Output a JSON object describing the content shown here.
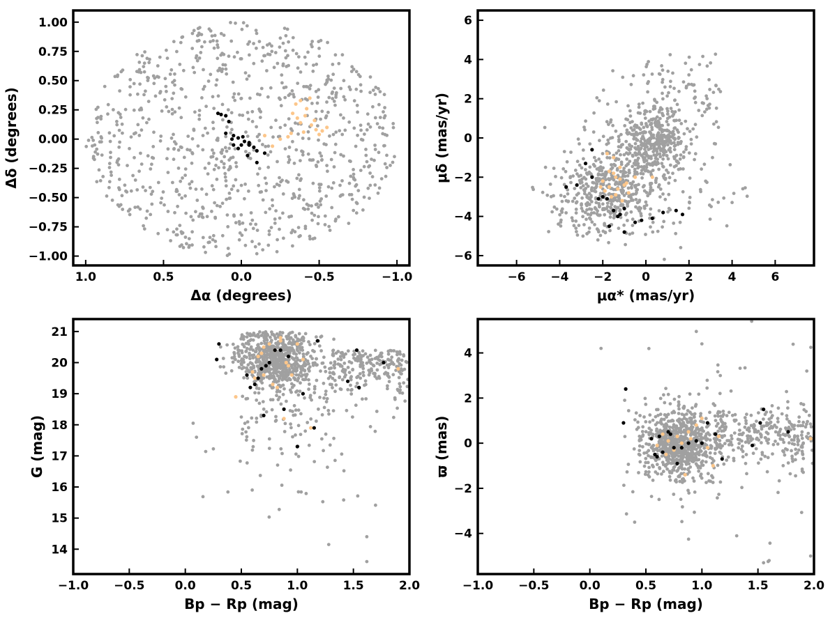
{
  "colors": {
    "field": "#a0a0a0",
    "orange": "#fcc68a",
    "black": "#000000"
  },
  "chart_data": [
    {
      "type": "scatter",
      "xlabel": "Δα (degrees)",
      "ylabel": "Δδ (degrees)",
      "xlim": [
        1.08,
        -1.08
      ],
      "ylim": [
        -1.08,
        1.1
      ],
      "xticks": [
        1.0,
        0.5,
        0.0,
        -0.5,
        -1.0
      ],
      "xtick_labels": [
        "1.0",
        "0.5",
        "0.0",
        "−0.5",
        "−1.0"
      ],
      "yticks": [
        -1.0,
        -0.75,
        -0.5,
        -0.25,
        0.0,
        0.25,
        0.5,
        0.75,
        1.0
      ],
      "ytick_labels": [
        "−1.00",
        "−0.75",
        "−0.50",
        "−0.25",
        "0.00",
        "0.25",
        "0.50",
        "0.75",
        "1.00"
      ],
      "field_description": "~900 grey stars uniformly filling a circle of radius 1 degree",
      "series_orange": {
        "x": [
          -0.35,
          -0.38,
          -0.42,
          -0.33,
          -0.36,
          -0.45,
          -0.48,
          -0.4,
          -0.5,
          -0.55,
          -0.3,
          -0.25,
          -0.2,
          -0.15,
          -0.44,
          -0.38,
          -0.32,
          -0.41,
          -0.47,
          -0.52
        ],
        "y": [
          0.3,
          0.33,
          0.26,
          0.22,
          0.18,
          0.12,
          0.08,
          0.06,
          0.04,
          0.1,
          0.02,
          0.0,
          -0.06,
          0.03,
          0.35,
          0.14,
          0.05,
          0.2,
          0.16,
          0.07
        ]
      },
      "series_black": {
        "x": [
          0.15,
          0.13,
          0.1,
          0.08,
          0.1,
          0.05,
          0.02,
          -0.02,
          0.0,
          -0.05,
          -0.08,
          -0.1,
          -0.04,
          0.02,
          0.05,
          -0.15,
          -0.1,
          -0.05,
          0.06,
          -0.01
        ],
        "y": [
          0.22,
          0.21,
          0.2,
          0.15,
          0.05,
          0.03,
          0.01,
          -0.02,
          -0.05,
          -0.05,
          -0.07,
          -0.2,
          -0.14,
          -0.08,
          -0.05,
          -0.12,
          -0.1,
          -0.03,
          0.0,
          0.02
        ]
      }
    },
    {
      "type": "scatter",
      "xlabel": "μα* (mas/yr)",
      "ylabel": "μδ (mas/yr)",
      "xlim": [
        -7.8,
        7.8
      ],
      "ylim": [
        -6.5,
        6.5
      ],
      "xticks": [
        -6,
        -4,
        -2,
        0,
        2,
        4,
        6
      ],
      "xtick_labels": [
        "−6",
        "−4",
        "−2",
        "0",
        "2",
        "4",
        "6"
      ],
      "yticks": [
        -6,
        -4,
        -2,
        0,
        2,
        4,
        6
      ],
      "ytick_labels": [
        "−6",
        "−4",
        "−2",
        "0",
        "2",
        "4",
        "6"
      ],
      "field_description": "grey stars: clump near (0,0), broad spread toward (-2,-3)",
      "series_orange": {
        "x": [
          -1.8,
          -1.5,
          -1.2,
          -2.0,
          -1.7,
          -1.4,
          -1.0,
          -0.8,
          -1.6,
          -1.3,
          -0.5,
          -1.9,
          -1.1,
          -0.9,
          -1.5,
          -1.2,
          -2.1,
          0.3,
          -1.7,
          -1.4
        ],
        "y": [
          -0.8,
          -1.0,
          -1.5,
          -2.2,
          -2.5,
          -2.0,
          -2.4,
          -2.8,
          -3.0,
          -2.6,
          -2.0,
          -2.7,
          -3.2,
          -2.3,
          -1.8,
          -2.1,
          -2.5,
          -2.0,
          -1.7,
          -2.9
        ]
      },
      "series_black": {
        "x": [
          -2.5,
          -2.8,
          -3.2,
          -3.7,
          -2.5,
          -1.8,
          -1.5,
          -1.2,
          -1.0,
          -1.3,
          -1.7,
          -0.5,
          -0.2,
          0.3,
          1.7,
          1.4,
          0.8,
          -2.0,
          -1.0,
          -2.2
        ],
        "y": [
          -0.6,
          -1.3,
          -2.4,
          -2.5,
          -2.0,
          -3.1,
          -3.7,
          -3.9,
          -3.6,
          -4.0,
          -4.5,
          -4.3,
          -4.2,
          -4.1,
          -3.9,
          -3.7,
          -3.8,
          -3.0,
          -4.8,
          -3.1
        ]
      }
    },
    {
      "type": "scatter",
      "xlabel": "Bp − Rp (mag)",
      "ylabel": "G (mag)",
      "xlim": [
        -1.0,
        2.0
      ],
      "ylim": [
        13.2,
        21.4
      ],
      "xticks": [
        -1.0,
        -0.5,
        0.0,
        0.5,
        1.0,
        1.5,
        2.0
      ],
      "xtick_labels": [
        "−1.0",
        "−0.5",
        "0.0",
        "0.5",
        "1.0",
        "1.5",
        "2.0"
      ],
      "yticks": [
        14,
        15,
        16,
        17,
        18,
        19,
        20,
        21
      ],
      "ytick_labels": [
        "14",
        "15",
        "16",
        "17",
        "18",
        "19",
        "20",
        "21"
      ],
      "field_description": "grey stars concentrated at Bp-Rp 0.5-1.0, G 19-21, tail to fainter/redder",
      "series_orange": {
        "x": [
          0.45,
          0.6,
          0.65,
          0.7,
          0.75,
          0.8,
          0.82,
          0.85,
          0.88,
          0.9,
          0.95,
          1.0,
          1.05,
          1.12,
          0.7,
          0.78,
          0.62,
          0.85,
          0.92,
          0.68,
          1.9
        ],
        "y": [
          18.9,
          19.7,
          20.2,
          19.6,
          20.6,
          20.4,
          19.2,
          20.8,
          18.2,
          20.0,
          19.6,
          20.6,
          20.1,
          17.9,
          20.5,
          19.3,
          19.5,
          20.7,
          19.9,
          20.3,
          19.8
        ]
      },
      "series_black": {
        "x": [
          0.3,
          0.28,
          0.55,
          0.58,
          0.62,
          0.65,
          0.68,
          0.72,
          0.75,
          0.8,
          0.85,
          0.88,
          0.92,
          1.0,
          1.05,
          1.15,
          1.18,
          1.45,
          1.55,
          1.53,
          1.77,
          0.7
        ],
        "y": [
          20.6,
          20.1,
          19.6,
          19.2,
          19.3,
          19.5,
          19.8,
          19.9,
          20.0,
          20.4,
          20.4,
          18.5,
          20.2,
          17.3,
          19.0,
          17.9,
          20.7,
          19.4,
          19.2,
          20.4,
          20.0,
          18.3
        ]
      }
    },
    {
      "type": "scatter",
      "xlabel": "Bp − Rp (mag)",
      "ylabel": "ϖ (mas)",
      "xlim": [
        -1.0,
        2.0
      ],
      "ylim": [
        -5.8,
        5.5
      ],
      "xticks": [
        -1.0,
        -0.5,
        0.0,
        0.5,
        1.0,
        1.5,
        2.0
      ],
      "xtick_labels": [
        "−1.0",
        "−0.5",
        "0.0",
        "0.5",
        "1.0",
        "1.5",
        "2.0"
      ],
      "yticks": [
        -4,
        -2,
        0,
        2,
        4
      ],
      "ytick_labels": [
        "−4",
        "−2",
        "0",
        "2",
        "4"
      ],
      "field_description": "grey stars clumped around Bp-Rp 0.8, parallax 0 with wide scatter",
      "series_orange": {
        "x": [
          0.55,
          0.6,
          0.65,
          0.7,
          0.75,
          0.78,
          0.82,
          0.85,
          0.9,
          0.95,
          1.0,
          1.05,
          1.1,
          1.15,
          0.68,
          0.88,
          1.97
        ],
        "y": [
          0.2,
          -0.1,
          0.4,
          0.1,
          -0.3,
          0.3,
          0.0,
          -1.4,
          0.2,
          0.8,
          1.1,
          -0.2,
          -1.0,
          0.3,
          -0.5,
          0.5,
          0.2
        ]
      },
      "series_black": {
        "x": [
          0.3,
          0.32,
          0.55,
          0.58,
          0.6,
          0.62,
          0.65,
          0.7,
          0.72,
          0.78,
          0.82,
          0.88,
          1.0,
          1.05,
          1.12,
          1.18,
          1.45,
          1.52,
          1.55,
          1.77,
          0.75,
          0.95
        ],
        "y": [
          0.9,
          2.4,
          0.2,
          -0.5,
          -0.6,
          0.3,
          -0.4,
          0.5,
          0.4,
          -0.9,
          -0.2,
          0.0,
          0.0,
          0.9,
          0.4,
          -0.7,
          -0.1,
          0.9,
          1.5,
          0.5,
          -0.2,
          0.1
        ]
      }
    }
  ]
}
